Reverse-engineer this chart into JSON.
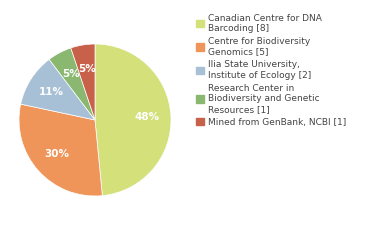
{
  "labels": [
    "Canadian Centre for DNA\nBarcoding [8]",
    "Centre for Biodiversity\nGenomics [5]",
    "Ilia State University,\nInstitute of Ecology [2]",
    "Research Center in\nBiodiversity and Genetic\nResources [1]",
    "Mined from GenBank, NCBI [1]"
  ],
  "values": [
    47,
    29,
    11,
    5,
    5
  ],
  "colors": [
    "#d4e07a",
    "#f0955a",
    "#a8c0d6",
    "#8ab870",
    "#c8614a"
  ],
  "background_color": "#ffffff",
  "text_color": "#444444",
  "pct_fontsize": 7.5,
  "legend_fontsize": 6.5,
  "startangle": 90,
  "pct_distance": 0.68
}
